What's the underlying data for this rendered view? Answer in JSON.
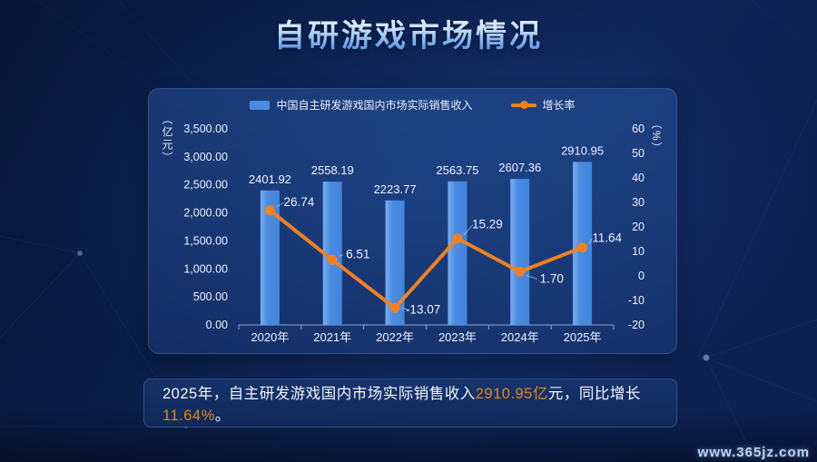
{
  "page": {
    "title": "自研游戏市场情况",
    "watermark": "www.365jz.com"
  },
  "chart_data": {
    "type": "bar",
    "subtype": "combo-bar-line",
    "categories": [
      "2020年",
      "2021年",
      "2022年",
      "2023年",
      "2024年",
      "2025年"
    ],
    "series": [
      {
        "name": "中国自主研发游戏国内市场实际销售收入",
        "kind": "bar",
        "axis": "left",
        "color": "#4a8ce2",
        "values": [
          2401.92,
          2558.19,
          2223.77,
          2563.75,
          2607.36,
          2910.95
        ]
      },
      {
        "name": "增长率",
        "kind": "line",
        "axis": "right",
        "color": "#f08120",
        "values": [
          26.74,
          6.51,
          -13.07,
          15.29,
          1.7,
          11.64
        ]
      }
    ],
    "left_axis": {
      "unit": "（亿元）",
      "min": 0,
      "max": 3500,
      "step": 500,
      "tick_labels": [
        "0.00",
        "500.00",
        "1,000.00",
        "1,500.00",
        "2,000.00",
        "2,500.00",
        "3,000.00",
        "3,500.00"
      ]
    },
    "right_axis": {
      "unit": "（%）",
      "min": -20,
      "max": 60,
      "step": 10,
      "tick_labels": [
        "-20",
        "-10",
        "0",
        "10",
        "20",
        "30",
        "40",
        "50",
        "60"
      ]
    },
    "legend_position": "top",
    "grid": false
  },
  "summary": {
    "part1": "2025年，自主研发游戏国内市场实际销售收入",
    "value1": "2910.95亿",
    "part2": "元，同比增长",
    "value2": "11.64%",
    "part3": "。"
  },
  "colors": {
    "bar_gradient_light": "#79aef2",
    "bar_gradient_dark": "#4285dc",
    "line": "#f08120",
    "axis_line": "#93a9cd",
    "connector": "#cdd9ec",
    "highlight": "#e5861d"
  }
}
